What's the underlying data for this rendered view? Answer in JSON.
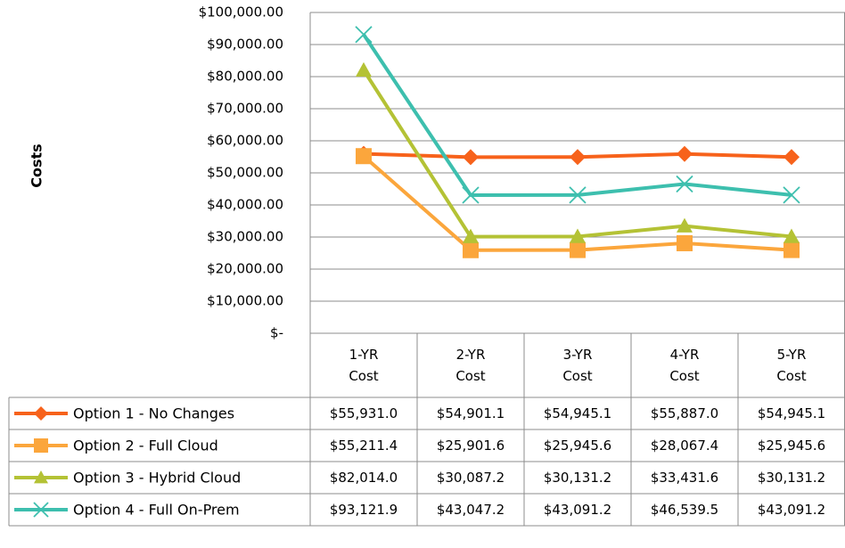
{
  "chart_data": {
    "type": "line",
    "y_label": "Costs",
    "categories": [
      "1-YR Cost",
      "2-YR Cost",
      "3-YR Cost",
      "4-YR Cost",
      "5-YR Cost"
    ],
    "ylim": [
      0,
      100000
    ],
    "yticks": [
      {
        "value": 0,
        "label": "$-"
      },
      {
        "value": 10000,
        "label": "$10,000.00"
      },
      {
        "value": 20000,
        "label": "$20,000.00"
      },
      {
        "value": 30000,
        "label": "$30,000.00"
      },
      {
        "value": 40000,
        "label": "$40,000.00"
      },
      {
        "value": 50000,
        "label": "$50,000.00"
      },
      {
        "value": 60000,
        "label": "$60,000.00"
      },
      {
        "value": 70000,
        "label": "$70,000.00"
      },
      {
        "value": 80000,
        "label": "$80,000.00"
      },
      {
        "value": 90000,
        "label": "$90,000.00"
      },
      {
        "value": 100000,
        "label": "$100,000.00"
      }
    ],
    "grid": true,
    "series": [
      {
        "name": "Option 1 - No Changes",
        "color": "#f7621b",
        "marker": "diamond",
        "values": [
          55931.0,
          54901.1,
          54945.1,
          55887.0,
          54945.1
        ],
        "value_labels": [
          "$55,931.0",
          "$54,901.1",
          "$54,945.1",
          "$55,887.0",
          "$54,945.1"
        ]
      },
      {
        "name": "Option 2 - Full Cloud",
        "color": "#fba63c",
        "marker": "square",
        "values": [
          55211.4,
          25901.6,
          25945.6,
          28067.4,
          25945.6
        ],
        "value_labels": [
          "$55,211.4",
          "$25,901.6",
          "$25,945.6",
          "$28,067.4",
          "$25,945.6"
        ]
      },
      {
        "name": "Option 3 - Hybrid Cloud",
        "color": "#b4c235",
        "marker": "triangle",
        "values": [
          82014.0,
          30087.2,
          30131.2,
          33431.6,
          30131.2
        ],
        "value_labels": [
          "$82,014.0",
          "$30,087.2",
          "$30,131.2",
          "$33,431.6",
          "$30,131.2"
        ]
      },
      {
        "name": "Option 4 - Full On-Prem",
        "color": "#3dbfae",
        "marker": "x",
        "values": [
          93121.9,
          43047.2,
          43091.2,
          46539.5,
          43091.2
        ],
        "value_labels": [
          "$93,121.9",
          "$43,047.2",
          "$43,091.2",
          "$46,539.5",
          "$43,091.2"
        ]
      }
    ]
  }
}
